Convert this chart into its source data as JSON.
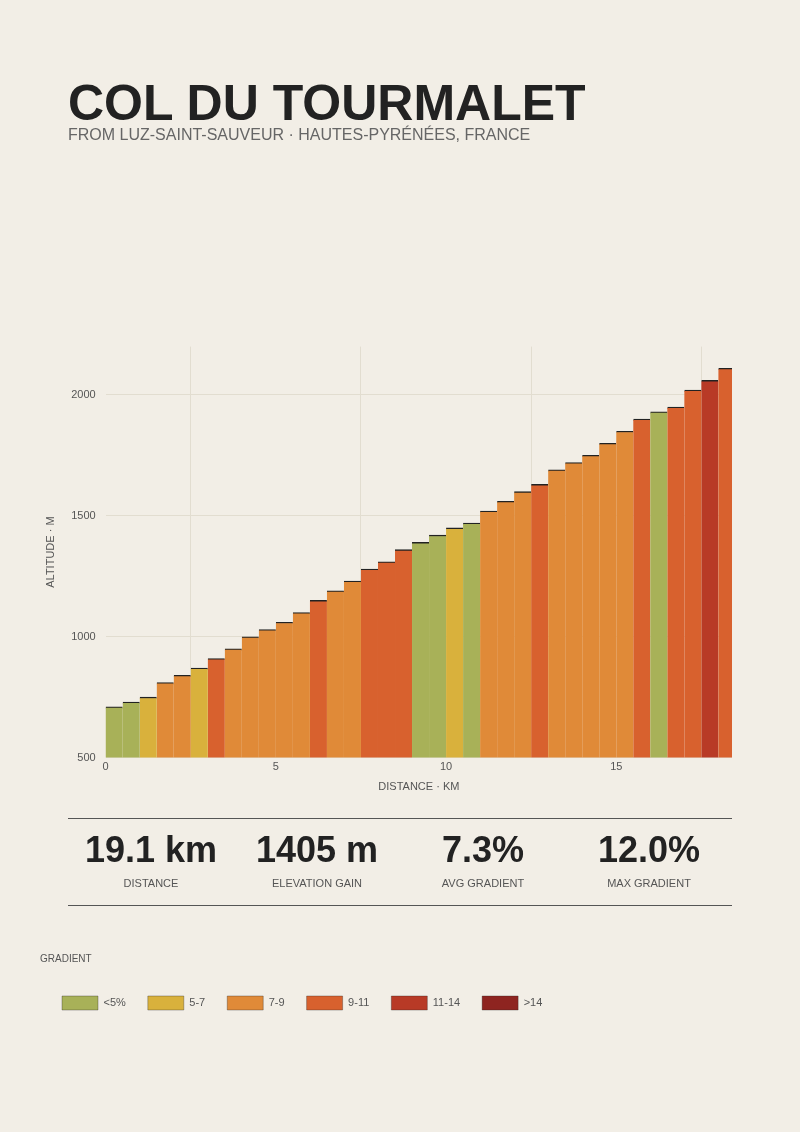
{
  "chart_data": {
    "type": "bar",
    "title": "COL DU TOURMALET",
    "subtitle": "FROM LUZ-SAINT-SAUVEUR · HAUTES-PYRÉNÉES, FRANCE",
    "xlabel": "DISTANCE · KM",
    "ylabel": "ALTITUDE · M",
    "legend_title": "GRADIENT",
    "legend": "bottom",
    "grid": true,
    "xlim": [
      0,
      18.4
    ],
    "xticks": [
      0,
      5,
      10,
      15
    ],
    "ylim": [
      500,
      2200
    ],
    "yticks": [
      500,
      1000,
      1500,
      2000
    ],
    "series": [
      {
        "name": "<5%",
        "color": "#a8b158",
        "x": [
          0.25,
          0.75,
          9.25,
          9.75,
          10.75,
          16.25
        ],
        "values": [
          710,
          730,
          1390,
          1420,
          1470,
          1930
        ]
      },
      {
        "name": "5-7",
        "color": "#d9b13c",
        "x": [
          1.25,
          2.75,
          10.25
        ],
        "values": [
          750,
          870,
          1450
        ]
      },
      {
        "name": "7-9",
        "color": "#e08a38",
        "x": [
          1.75,
          2.25,
          3.75,
          4.25,
          4.75,
          5.25,
          5.75,
          6.75,
          7.25,
          11.25,
          11.75,
          12.25,
          13.25,
          13.75,
          14.25,
          14.75,
          15.25
        ],
        "values": [
          810,
          840,
          950,
          1000,
          1030,
          1060,
          1100,
          1190,
          1230,
          1520,
          1560,
          1600,
          1690,
          1720,
          1750,
          1800,
          1850
        ]
      },
      {
        "name": "9-11",
        "color": "#d8612e",
        "x": [
          3.25,
          6.25,
          7.75,
          8.25,
          8.75,
          12.75,
          15.75,
          16.75,
          17.25,
          18.25
        ],
        "values": [
          910,
          1150,
          1280,
          1310,
          1360,
          1630,
          1900,
          1950,
          2020,
          2110
        ]
      },
      {
        "name": "11-14",
        "color": "#b83a26",
        "x": [
          17.75
        ],
        "values": [
          2060
        ]
      },
      {
        "name": ">14",
        "color": "#8e2420"
      }
    ],
    "annotations": [
      "19.1 km",
      "DISTANCE",
      "1405 m",
      "ELEVATION GAIN",
      "7.3%",
      "AVG GRADIENT",
      "12.0%",
      "MAX GRADIENT"
    ]
  }
}
